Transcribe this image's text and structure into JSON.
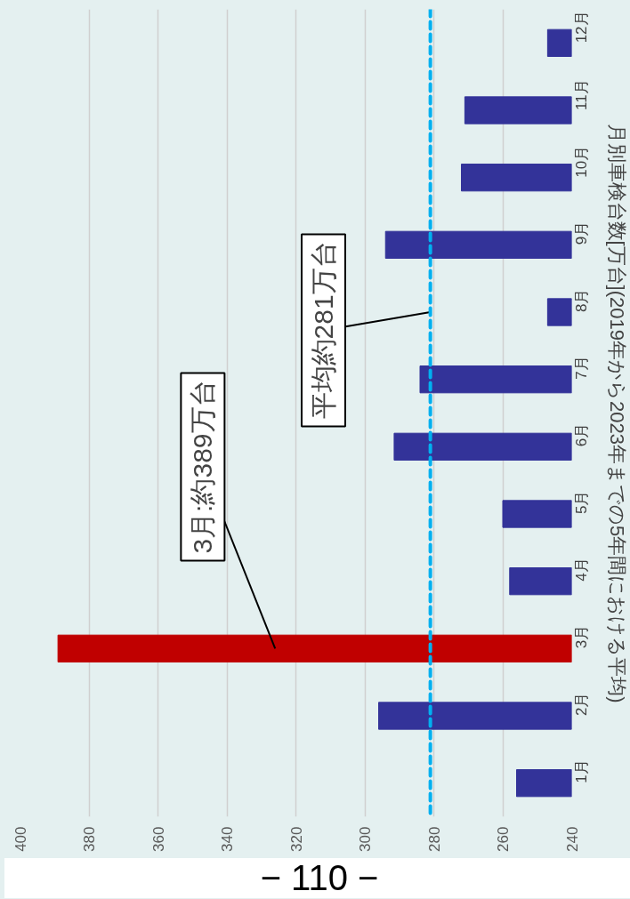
{
  "chart_data": {
    "type": "bar",
    "orientation": "horizontal",
    "categories": [
      "12月",
      "11月",
      "10月",
      "9月",
      "8月",
      "7月",
      "6月",
      "5月",
      "4月",
      "3月",
      "2月",
      "1月"
    ],
    "values": [
      247,
      271,
      272,
      294,
      247,
      284,
      291.5,
      260,
      258,
      389,
      296,
      256
    ],
    "colors": [
      "#333399",
      "#333399",
      "#333399",
      "#333399",
      "#333399",
      "#333399",
      "#333399",
      "#333399",
      "#333399",
      "#c00000",
      "#333399",
      "#333399"
    ],
    "xlim": [
      400,
      240
    ],
    "xticks": [
      400,
      380,
      360,
      340,
      320,
      300,
      280,
      260,
      240
    ],
    "ylabel": "月別車検台数[万台](2019年から2023年までの5年間における平均)",
    "grid": "x",
    "ref_lines": [
      {
        "axis": "x",
        "value": 281,
        "color": "#00b0f0",
        "line_style": "dashed"
      }
    ],
    "annotations": [
      "3月:約389万台",
      {
        "text": "平均約281万台",
        "x": 281
      },
      "− 110 −"
    ]
  }
}
